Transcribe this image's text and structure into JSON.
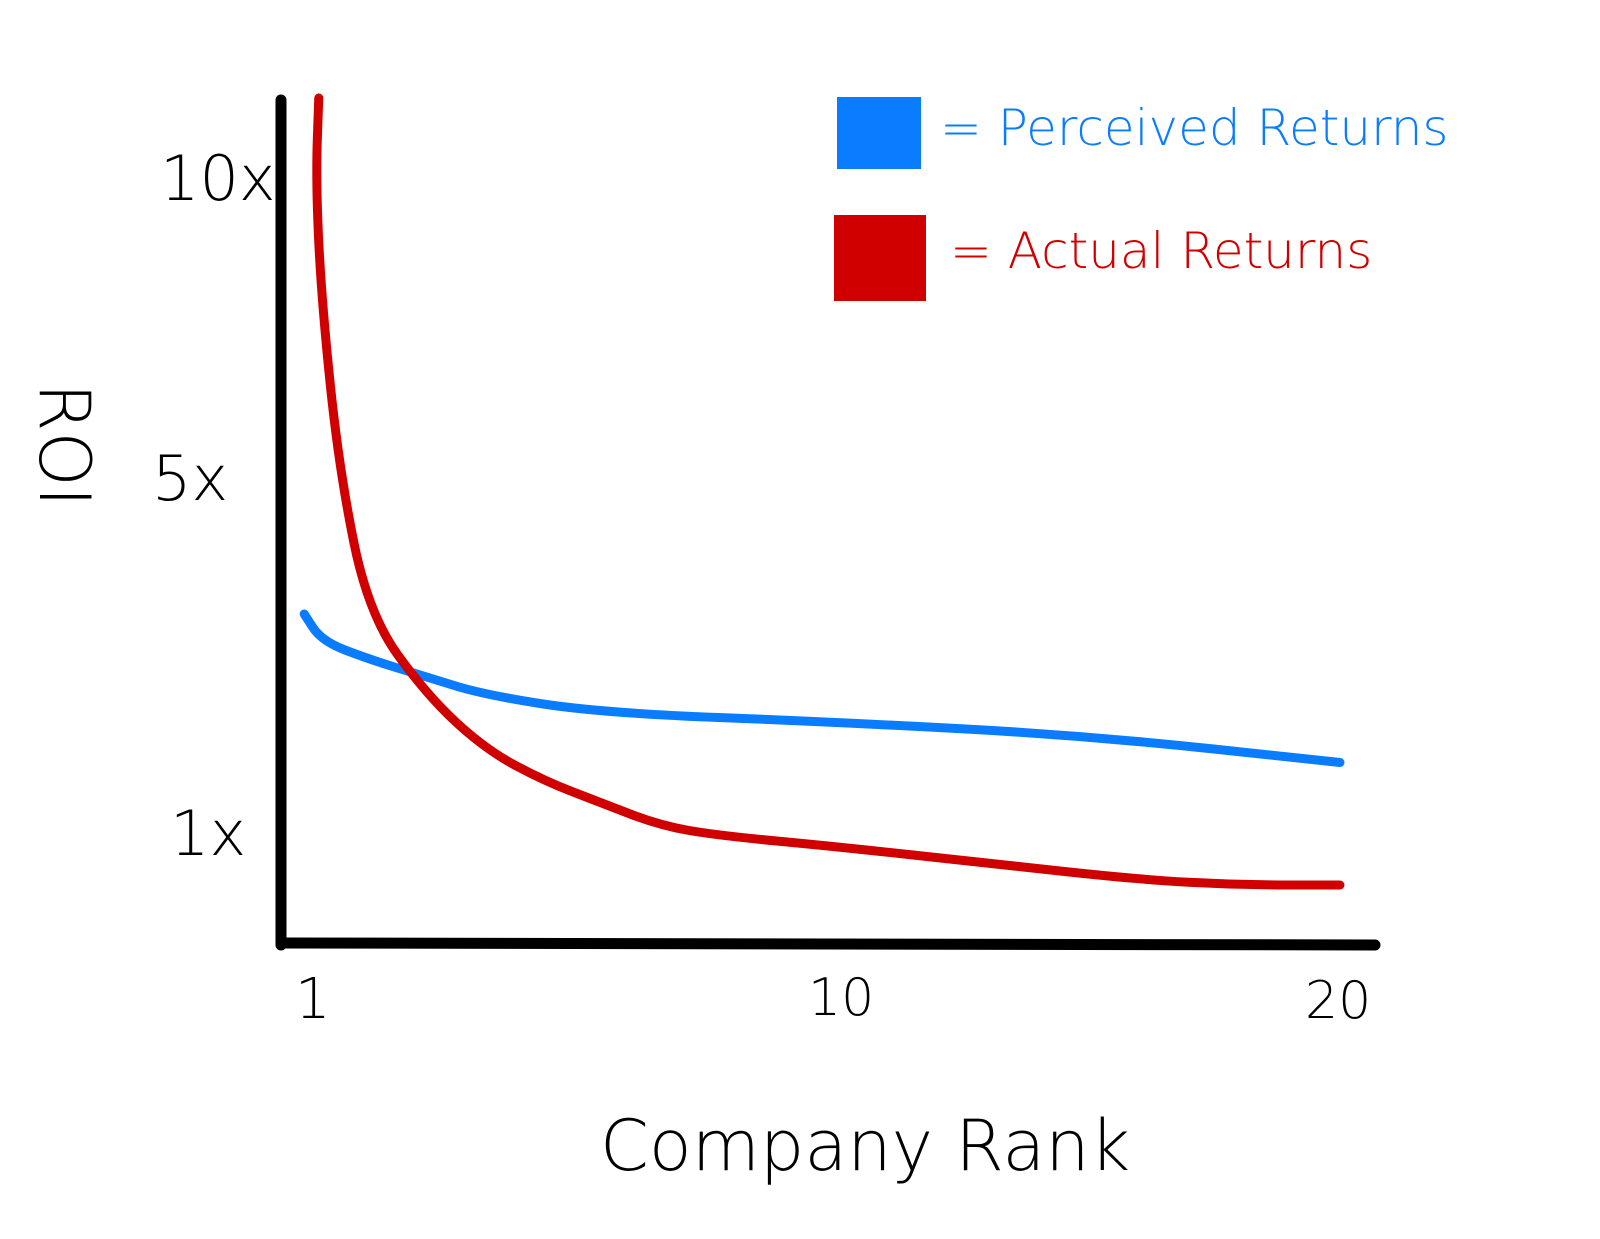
{
  "chart_data": {
    "type": "line",
    "title": "",
    "xlabel": "Company Rank",
    "ylabel": "ROI",
    "x_ticks": [
      "1",
      "10",
      "20"
    ],
    "x_tick_values": [
      1,
      10,
      20
    ],
    "y_ticks": [
      "10x",
      "5x",
      "1x"
    ],
    "y_tick_values": [
      10,
      5,
      1
    ],
    "xlim": [
      0.8,
      20.5
    ],
    "grid": false,
    "legend_position": "top-right",
    "series": [
      {
        "name": "= Perceived Returns",
        "color": "#0a7cff",
        "x": [
          0.9,
          1.2,
          2,
          3,
          4,
          6,
          10,
          15,
          20
        ],
        "y": [
          3.4,
          3.1,
          2.9,
          2.7,
          2.5,
          2.3,
          2.2,
          2.05,
          1.75
        ]
      },
      {
        "name": "= Actual Returns",
        "color": "#d10000",
        "x": [
          1.15,
          1.1,
          1.2,
          1.5,
          2,
          3,
          4,
          5,
          6,
          7,
          8,
          10,
          13,
          16,
          18,
          20
        ],
        "y": [
          11.2,
          9.8,
          7.8,
          5,
          3.4,
          2.5,
          1.9,
          1.55,
          1.3,
          1.05,
          0.95,
          0.85,
          0.7,
          0.55,
          0.5,
          0.5
        ]
      }
    ]
  }
}
